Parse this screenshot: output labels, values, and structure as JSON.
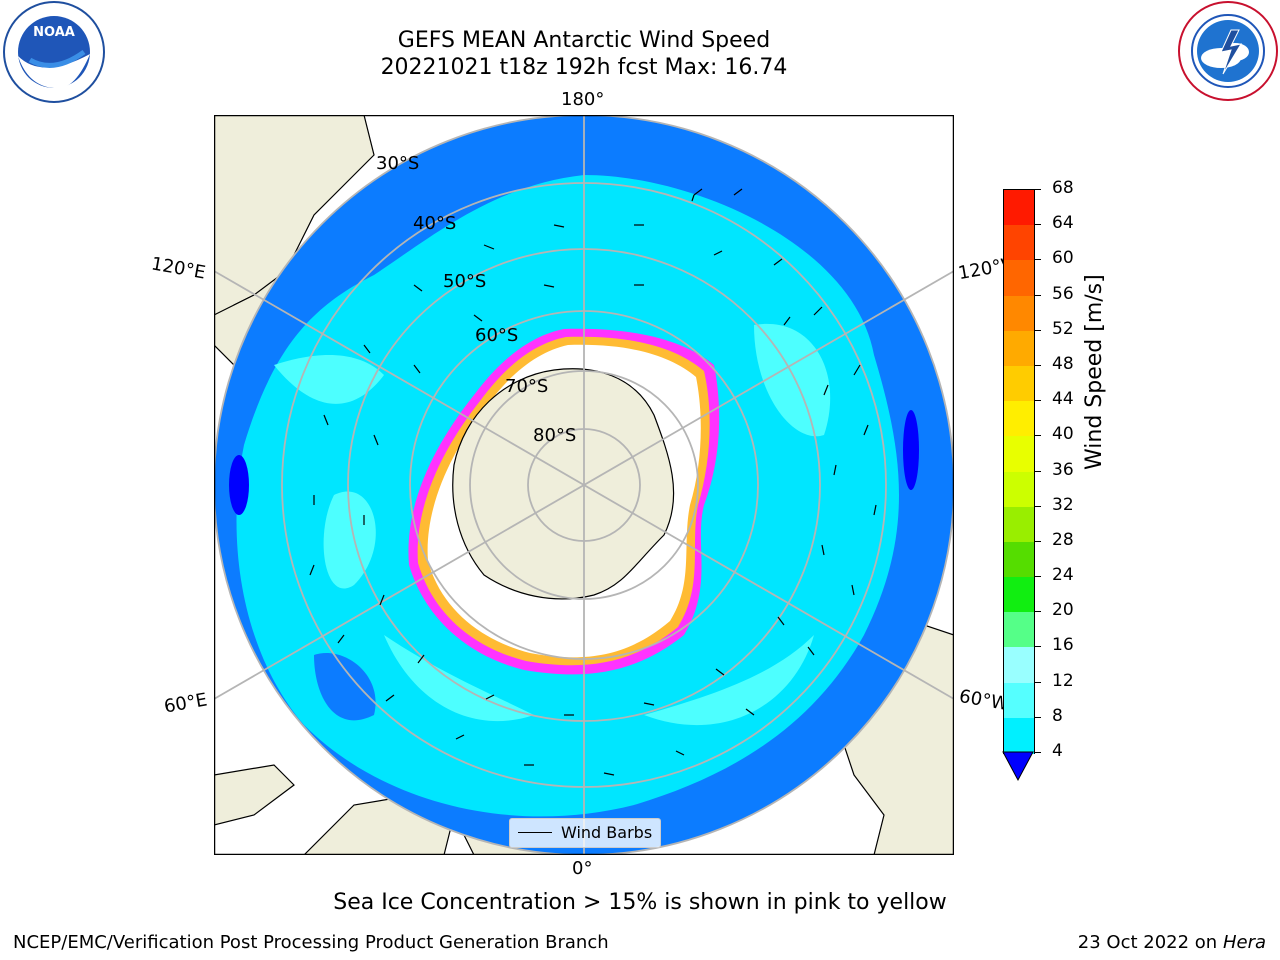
{
  "title": {
    "line1": "GEFS MEAN Antarctic Wind Speed",
    "line2": "20221021 t18z 192h fcst   Max: 16.74"
  },
  "map": {
    "longitude_labels": {
      "top": "180°",
      "bottom": "0°",
      "upper_left": "120°E",
      "upper_right": "120°W",
      "lower_left": "60°E",
      "lower_right": "60°W"
    },
    "latitude_labels": [
      "30°S",
      "40°S",
      "50°S",
      "60°S",
      "70°S",
      "80°S"
    ],
    "legend": {
      "wind_barbs": "Wind Barbs"
    },
    "colors": {
      "land": "#efeedb",
      "ocean_low": "#0c7cff",
      "ocean_mid": "#00e6ff",
      "ocean_high": "#4dffff",
      "sea_ice_edge": "#ff33ff",
      "sea_ice_inner": "#ffbb33"
    }
  },
  "colorbar": {
    "label": "Wind Speed [m/s]",
    "ticks": [
      "68",
      "64",
      "60",
      "56",
      "52",
      "48",
      "44",
      "40",
      "36",
      "32",
      "28",
      "24",
      "20",
      "16",
      "12",
      "8",
      "4"
    ],
    "colors": [
      "#ff1a00",
      "#ff4400",
      "#ff6600",
      "#ff8800",
      "#ffaa00",
      "#ffcc00",
      "#ffee00",
      "#e8ff00",
      "#ccff00",
      "#99ee00",
      "#55dd00",
      "#11ee11",
      "#55ff88",
      "#99ffff",
      "#55ffff",
      "#00f0ff",
      "#0070ff"
    ],
    "extend_color": "#0000ff"
  },
  "caption": "Sea Ice Concentration > 15% is shown in pink to yellow",
  "footer": {
    "left": "NCEP/EMC/Verification Post Processing Product Generation Branch",
    "right_date": "23 Oct 2022 on",
    "right_machine": "Hera"
  }
}
